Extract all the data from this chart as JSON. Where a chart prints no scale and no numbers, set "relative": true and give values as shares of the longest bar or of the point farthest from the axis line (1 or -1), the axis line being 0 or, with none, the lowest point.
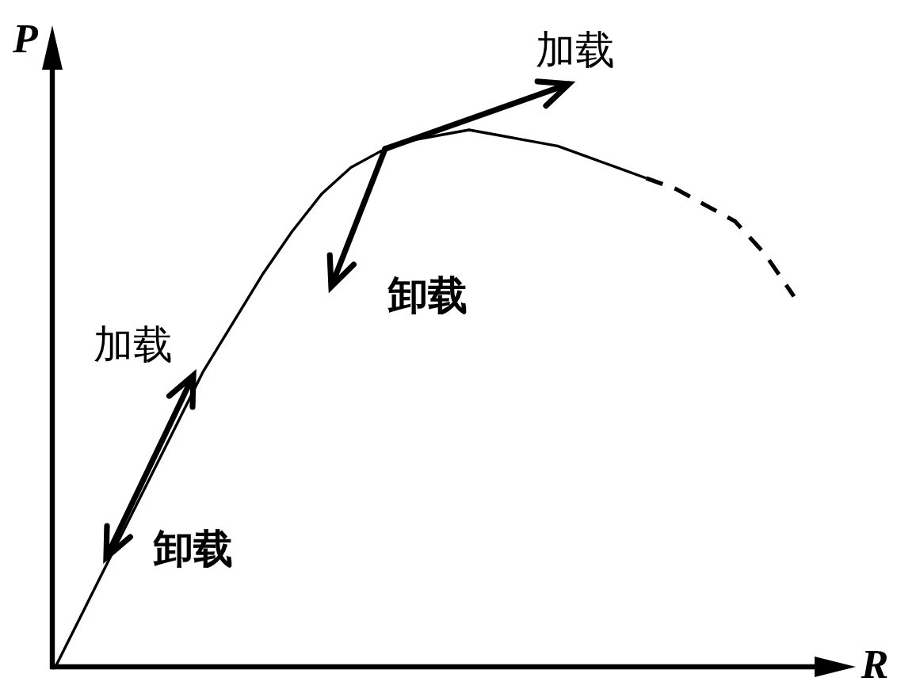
{
  "chart_data": {
    "type": "line",
    "relative": true,
    "xlabel": "R",
    "ylabel": "P",
    "categories": [
      null,
      null,
      null,
      null,
      null,
      null,
      null,
      null,
      null,
      null,
      null,
      null,
      null,
      null,
      null,
      null,
      null,
      null,
      null,
      null,
      null,
      null,
      null,
      null,
      null,
      null
    ],
    "series": [
      {
        "color": "#000000",
        "line_style": "solid",
        "values": [
          0,
          0.11,
          0.22,
          0.33,
          0.44,
          0.55,
          0.64,
          0.73,
          0.81,
          0.88,
          0.93,
          0.96,
          0.98,
          0.99,
          1,
          0.99,
          0.98,
          0.97,
          0.95,
          0.93,
          0.91,
          null,
          null,
          null,
          null,
          null
        ]
      },
      {
        "color": "#000000",
        "line_style": "dashed",
        "values": [
          null,
          null,
          null,
          null,
          null,
          null,
          null,
          null,
          null,
          null,
          null,
          null,
          null,
          null,
          null,
          null,
          null,
          null,
          null,
          null,
          0.91,
          0.89,
          0.86,
          0.83,
          0.77,
          0.69
        ]
      }
    ],
    "annotations": [
      "加载",
      "卸载",
      "加载",
      "卸载"
    ]
  }
}
